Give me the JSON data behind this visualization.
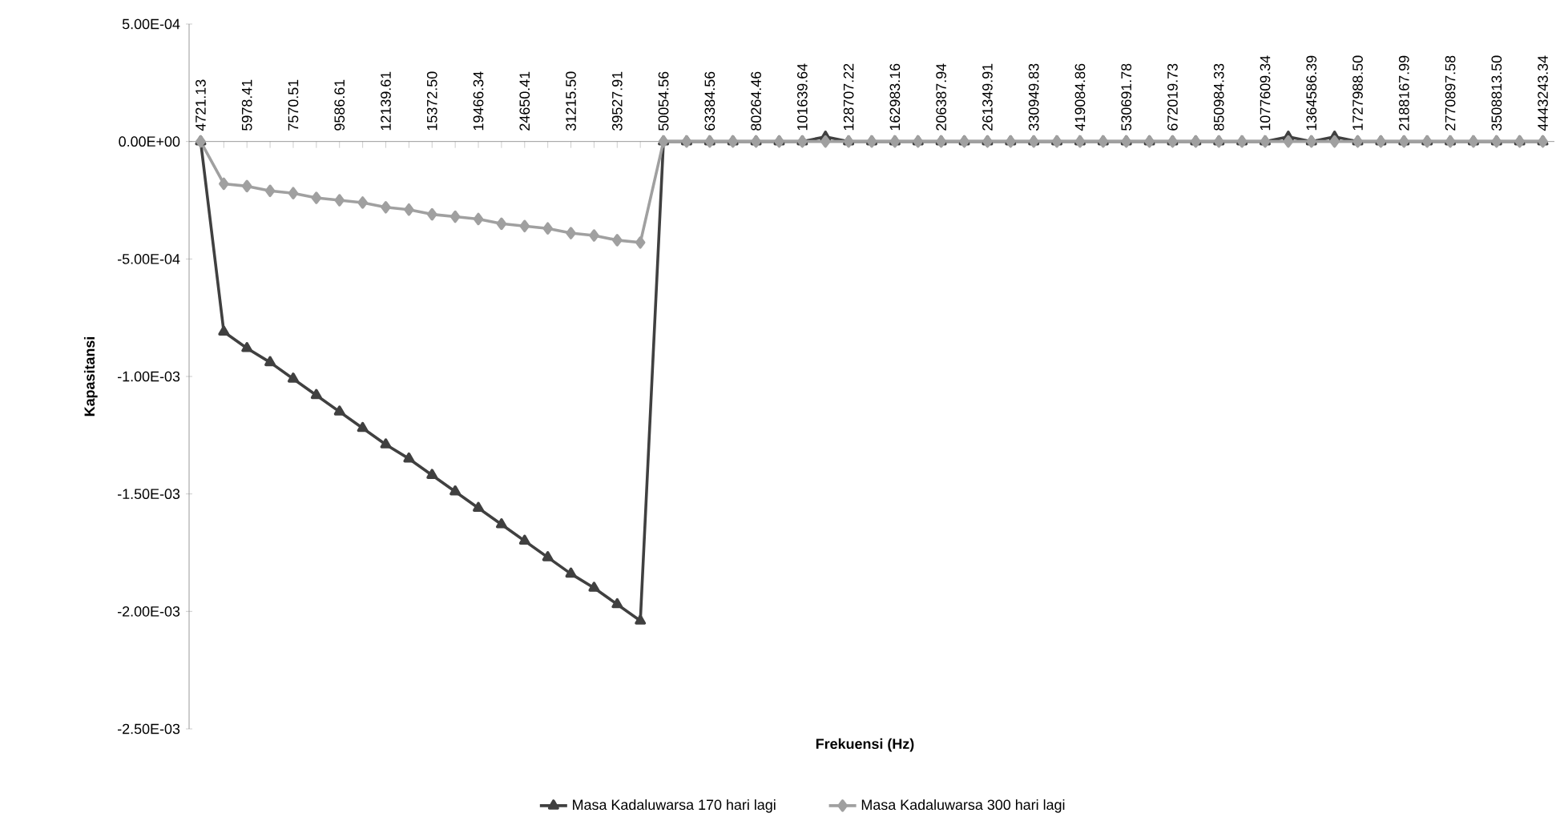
{
  "chart_data": {
    "type": "line",
    "xlabel": "Frekuensi (Hz)",
    "ylabel": "Kapasitansi",
    "categories": [
      "4721.13",
      null,
      "5978.41",
      null,
      "7570.51",
      null,
      "9586.61",
      null,
      "12139.61",
      null,
      "15372.50",
      null,
      "19466.34",
      null,
      "24650.41",
      null,
      "31215.50",
      null,
      "39527.91",
      null,
      "50054.56",
      null,
      "63384.56",
      null,
      "80264.46",
      null,
      "101639.64",
      null,
      "128707.22",
      null,
      "162983.16",
      null,
      "206387.94",
      null,
      "261349.91",
      null,
      "330949.83",
      null,
      "419084.86",
      null,
      "530691.78",
      null,
      "672019.73",
      null,
      "850984.33",
      null,
      "1077609.34",
      null,
      "1364586.39",
      null,
      "1727988.50",
      null,
      "2188167.99",
      null,
      "2770897.58",
      null,
      "3508813.50",
      null,
      "4443243.34"
    ],
    "ylim": [
      -0.0025,
      0.0005
    ],
    "yticks": [
      {
        "value": -0.0025,
        "label": "-2.50E-03"
      },
      {
        "value": -0.002,
        "label": "-2.00E-03"
      },
      {
        "value": -0.0015,
        "label": "-1.50E-03"
      },
      {
        "value": -0.001,
        "label": "-1.00E-03"
      },
      {
        "value": -0.0005,
        "label": "-5.00E-04"
      },
      {
        "value": 0,
        "label": "0.00E+00"
      },
      {
        "value": 0.0005,
        "label": "5.00E-04"
      }
    ],
    "legend": "bottom",
    "line_style": "solid",
    "series": [
      {
        "name": "Masa Kadaluwarsa  170 hari lagi",
        "color": "#404040",
        "marker": "triangle",
        "values": [
          0,
          -0.00081,
          -0.00088,
          -0.00094,
          -0.00101,
          -0.00108,
          -0.00115,
          -0.00122,
          -0.00129,
          -0.00135,
          -0.00142,
          -0.00149,
          -0.00156,
          -0.00163,
          -0.0017,
          -0.00177,
          -0.00184,
          -0.0019,
          -0.00197,
          -0.00204,
          0,
          0,
          0,
          0,
          0,
          0,
          0,
          2e-05,
          0,
          0,
          0,
          0,
          0,
          0,
          0,
          0,
          0,
          0,
          0,
          0,
          0,
          0,
          0,
          0,
          0,
          0,
          0,
          2e-05,
          0,
          2e-05,
          0,
          0,
          0,
          0,
          0,
          0,
          0,
          0,
          0
        ]
      },
      {
        "name": "Masa Kadaluwarsa  300 hari lagi",
        "color": "#a0a0a0",
        "marker": "diamond",
        "values": [
          0,
          -0.00018,
          -0.00019,
          -0.00021,
          -0.00022,
          -0.00024,
          -0.00025,
          -0.00026,
          -0.00028,
          -0.00029,
          -0.00031,
          -0.00032,
          -0.00033,
          -0.00035,
          -0.00036,
          -0.00037,
          -0.00039,
          -0.0004,
          -0.00042,
          -0.00043,
          0,
          0,
          0,
          0,
          0,
          0,
          0,
          0,
          0,
          0,
          0,
          0,
          0,
          0,
          0,
          0,
          0,
          0,
          0,
          0,
          0,
          0,
          0,
          0,
          0,
          0,
          0,
          0,
          0,
          0,
          0,
          0,
          0,
          0,
          0,
          0,
          0,
          0,
          0
        ]
      }
    ]
  }
}
